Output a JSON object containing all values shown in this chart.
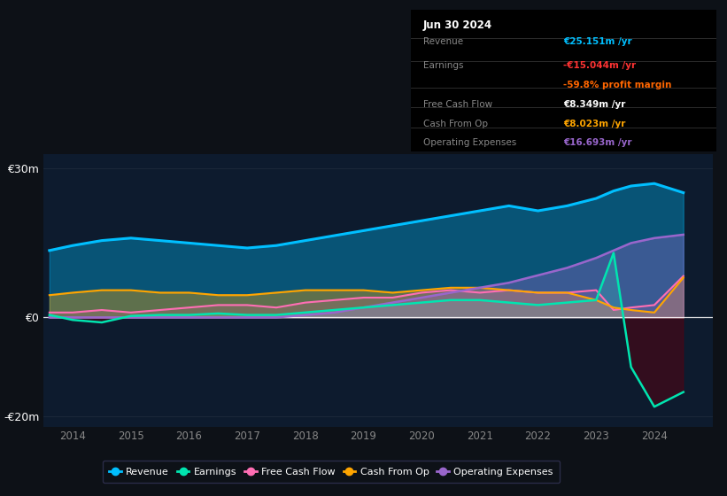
{
  "bg_color": "#0d1117",
  "chart_bg": "#0d1b2e",
  "years": [
    2013.6,
    2014.0,
    2014.5,
    2015.0,
    2015.5,
    2016.0,
    2016.5,
    2017.0,
    2017.5,
    2018.0,
    2018.5,
    2019.0,
    2019.5,
    2020.0,
    2020.5,
    2021.0,
    2021.5,
    2022.0,
    2022.5,
    2023.0,
    2023.3,
    2023.6,
    2024.0,
    2024.5
  ],
  "revenue": [
    13.5,
    14.5,
    15.5,
    16.0,
    15.5,
    15.0,
    14.5,
    14.0,
    14.5,
    15.5,
    16.5,
    17.5,
    18.5,
    19.5,
    20.5,
    21.5,
    22.5,
    21.5,
    22.5,
    24.0,
    25.5,
    26.5,
    27.0,
    25.151
  ],
  "earnings": [
    0.5,
    -0.5,
    -1.0,
    0.3,
    0.5,
    0.5,
    0.8,
    0.5,
    0.5,
    1.0,
    1.5,
    2.0,
    2.5,
    3.0,
    3.5,
    3.5,
    3.0,
    2.5,
    3.0,
    3.5,
    13.0,
    -10.0,
    -18.0,
    -15.044
  ],
  "free_cash_flow": [
    1.0,
    1.0,
    1.5,
    1.0,
    1.5,
    2.0,
    2.5,
    2.5,
    2.0,
    3.0,
    3.5,
    4.0,
    4.0,
    5.0,
    5.5,
    5.0,
    5.5,
    5.0,
    5.0,
    5.5,
    1.5,
    2.0,
    2.5,
    8.349
  ],
  "cash_from_op": [
    4.5,
    5.0,
    5.5,
    5.5,
    5.0,
    5.0,
    4.5,
    4.5,
    5.0,
    5.5,
    5.5,
    5.5,
    5.0,
    5.5,
    6.0,
    6.0,
    5.5,
    5.0,
    5.0,
    3.5,
    2.0,
    1.5,
    1.0,
    8.023
  ],
  "operating_expenses": [
    0.0,
    0.0,
    0.0,
    0.0,
    0.0,
    0.0,
    0.0,
    0.0,
    0.0,
    0.5,
    1.0,
    2.0,
    3.0,
    4.0,
    5.0,
    6.0,
    7.0,
    8.5,
    10.0,
    12.0,
    13.5,
    15.0,
    16.0,
    16.693
  ],
  "revenue_color": "#00bfff",
  "earnings_color": "#00e5b0",
  "fcf_color": "#ff6eb4",
  "cashop_color": "#ffa500",
  "opex_color": "#9966cc",
  "title_date": "Jun 30 2024",
  "info_revenue_val": "€25.151m",
  "info_earnings_val": "-€15.044m",
  "info_margin_val": "-59.8%",
  "info_fcf_val": "€8.349m",
  "info_cashop_val": "€8.023m",
  "info_opex_val": "€16.693m",
  "ylim_min": -22,
  "ylim_max": 33,
  "yticks": [
    -20,
    0,
    30
  ],
  "ytick_labels": [
    "-€20m",
    "€0",
    "€30m"
  ],
  "xlim_min": 2013.5,
  "xlim_max": 2025.0,
  "xticks": [
    2014,
    2015,
    2016,
    2017,
    2018,
    2019,
    2020,
    2021,
    2022,
    2023,
    2024
  ]
}
